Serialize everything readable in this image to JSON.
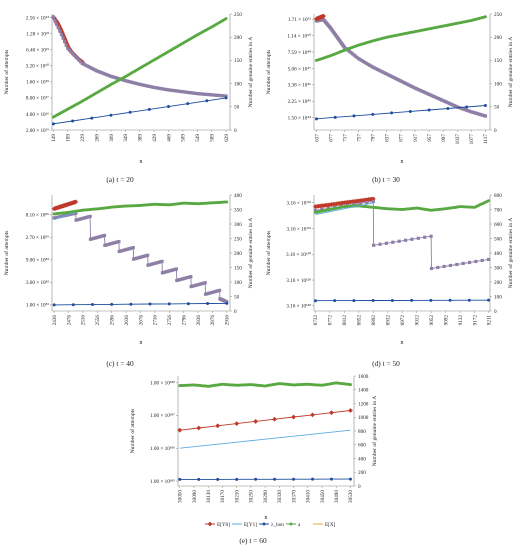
{
  "figure": {
    "legend": [
      {
        "label": "E[Y0]",
        "color": "#c0392b",
        "marker": "diamond"
      },
      {
        "label": "E[Y1]",
        "color": "#5dade2",
        "marker": "none"
      },
      {
        "label": "λ_hon",
        "color": "#1f4e9e",
        "marker": "circle"
      },
      {
        "label": "a",
        "color": "#58a942",
        "marker": "circle"
      },
      {
        "label": "E[X]",
        "color": "#e8a33d",
        "marker": "none"
      }
    ]
  },
  "chart_data": [
    {
      "id": "a",
      "type": "line",
      "caption": "(a)  t = 20",
      "xlabel": "n",
      "ylabel": "Number of attempts",
      "y2label": "Number of  genuine entries in A",
      "x_ticks": [
        "149",
        "189",
        "229",
        "269",
        "309",
        "349",
        "389",
        "429",
        "469",
        "509",
        "549",
        "589",
        "629"
      ],
      "y_left_ticks": [
        "2.56 × 10²⁴",
        "1.28 × 10²³",
        "6.40 × 10²¹",
        "3.20 × 10²⁰",
        "1.60 × 10¹⁹",
        "8.00 × 10¹⁷",
        "4.00 × 10¹⁶",
        "2.00 × 10¹⁵"
      ],
      "y_left_log10": [
        24.41,
        23.11,
        21.81,
        20.51,
        19.2,
        17.9,
        16.6,
        15.3
      ],
      "y_right_ticks": [
        0,
        50,
        100,
        150,
        200,
        250
      ],
      "xlim": [
        145,
        640
      ],
      "ylim_log10": [
        15.3,
        24.7
      ],
      "y2lim": [
        0,
        250
      ],
      "series": [
        {
          "legend": "E[Y0]",
          "axis": "left",
          "marker": "diamond",
          "color": "#c0392b",
          "x": [
            149,
            160,
            170,
            180,
            190,
            200,
            210,
            220,
            230
          ],
          "y_log10": [
            24.45,
            24.0,
            23.4,
            22.7,
            22.0,
            21.6,
            21.3,
            21.0,
            20.8
          ]
        },
        {
          "legend": "E[Y1]",
          "axis": "left",
          "marker": "none",
          "color": "#e07ad6",
          "x": [
            149,
            160,
            170,
            180,
            190,
            200,
            210,
            220,
            230
          ],
          "y_log10": [
            24.1,
            23.6,
            23.0,
            22.4,
            21.9,
            21.5,
            21.2,
            20.9,
            20.7
          ]
        },
        {
          "legend": "E[X]",
          "axis": "left",
          "marker": "square",
          "color": "#8e7fa6",
          "x": [
            149,
            189,
            229,
            269,
            309,
            349,
            389,
            429,
            469,
            509,
            549,
            589,
            629
          ],
          "y_log10": [
            24.45,
            21.9,
            20.7,
            20.1,
            19.65,
            19.3,
            19.0,
            18.75,
            18.55,
            18.4,
            18.25,
            18.15,
            18.05
          ]
        },
        {
          "legend": "λ_hon",
          "axis": "left",
          "marker": "circle",
          "color": "#1f4e9e",
          "x": [
            149,
            629
          ],
          "y_log10": [
            15.8,
            17.9
          ]
        },
        {
          "legend": "a",
          "axis": "right",
          "marker": "circle",
          "color": "#58a942",
          "x": [
            149,
            189,
            229,
            269,
            309,
            349,
            389,
            429,
            469,
            509,
            549,
            589,
            629
          ],
          "y": [
            28,
            45,
            62,
            80,
            98,
            115,
            133,
            151,
            169,
            187,
            205,
            222,
            240
          ]
        }
      ]
    },
    {
      "id": "b",
      "type": "line",
      "caption": "(b)  t = 30",
      "xlabel": "n",
      "ylabel": "Number of attempts",
      "y2label": "Number of  genuine entries in A",
      "x_ticks": [
        "637",
        "677",
        "717",
        "757",
        "797",
        "837",
        "877",
        "917",
        "957",
        "997",
        "1037",
        "1077",
        "1117"
      ],
      "y_left_ticks": [
        "1.71 × 10⁵¹",
        "1.14 × 10⁵⁰",
        "7.59 × 10⁴⁸",
        "5.06 × 10⁴⁷",
        "3.38 × 10⁴⁶",
        "2.25 × 10⁴⁵",
        "1.50 × 10⁴⁴"
      ],
      "y_left_log10": [
        51.23,
        50.06,
        48.88,
        47.7,
        46.53,
        45.35,
        44.18
      ],
      "y_right_ticks": [
        0,
        50,
        100,
        150,
        200,
        250
      ],
      "xlim": [
        630,
        1130
      ],
      "ylim_log10": [
        43.3,
        51.6
      ],
      "y2lim": [
        0,
        250
      ],
      "series": [
        {
          "legend": "E[X]",
          "axis": "left",
          "marker": "square",
          "color": "#8e7fa6",
          "x": [
            637,
            657,
            677,
            697,
            717,
            757,
            797,
            837,
            877,
            917,
            957,
            997,
            1037,
            1077,
            1117
          ],
          "y_log10": [
            51.1,
            51.2,
            50.6,
            49.9,
            49.2,
            48.4,
            47.8,
            47.3,
            46.8,
            46.3,
            45.85,
            45.4,
            44.95,
            44.6,
            44.3
          ]
        },
        {
          "legend": "E[Y0]",
          "axis": "left",
          "marker": "diamond",
          "color": "#c0392b",
          "x": [
            637,
            647,
            657
          ],
          "y_log10": [
            51.25,
            51.35,
            51.45
          ]
        },
        {
          "legend": "λ_hon",
          "axis": "left",
          "marker": "circle",
          "color": "#1f4e9e",
          "x": [
            637,
            1117
          ],
          "y_log10": [
            44.1,
            45.05
          ]
        },
        {
          "legend": "a",
          "axis": "right",
          "marker": "circle",
          "color": "#58a942",
          "x": [
            637,
            677,
            717,
            757,
            797,
            837,
            877,
            917,
            957,
            997,
            1037,
            1077,
            1117
          ],
          "y": [
            150,
            160,
            172,
            183,
            192,
            200,
            206,
            212,
            218,
            224,
            230,
            236,
            244
          ]
        }
      ]
    },
    {
      "id": "c",
      "type": "line",
      "caption": "(c)  t = 40",
      "xlabel": "n",
      "ylabel": "Number of attempts",
      "y2label": "Number of  genuine entries in A",
      "x_ticks": [
        "2436",
        "2476",
        "2516",
        "2556",
        "2596",
        "2636",
        "2676",
        "2716",
        "2756",
        "2796",
        "2836",
        "2876",
        "2916"
      ],
      "y_left_ticks": [
        "8.10 × 10⁸⁶",
        "2.70 × 10⁸⁵",
        "9.00 × 10⁸³",
        "3.00 × 10⁸²",
        "1.00 × 10⁸¹"
      ],
      "y_left_log10": [
        86.91,
        85.43,
        83.95,
        82.48,
        81.0
      ],
      "y_right_ticks": [
        0,
        50,
        100,
        150,
        200,
        250,
        300,
        350,
        400
      ],
      "xlim": [
        2430,
        2925
      ],
      "ylim_log10": [
        80.6,
        88.2
      ],
      "y2lim": [
        0,
        400
      ],
      "series": [
        {
          "legend": "E[Y0]",
          "axis": "left",
          "marker": "diamond",
          "color": "#c0392b",
          "x": [
            2436,
            2456,
            2476,
            2496
          ],
          "y_log10": [
            87.3,
            87.45,
            87.6,
            87.75
          ]
        },
        {
          "legend": "E[X]",
          "axis": "left",
          "marker": "square",
          "color": "#8e7fa6",
          "x": [
            2436,
            2496,
            2497,
            2536,
            2537,
            2576,
            2577,
            2616,
            2617,
            2656,
            2657,
            2696,
            2697,
            2736,
            2737,
            2776,
            2777,
            2816,
            2817,
            2856,
            2857,
            2896,
            2897,
            2916
          ],
          "y_log10": [
            86.7,
            87.0,
            86.55,
            86.8,
            85.3,
            85.55,
            84.9,
            85.15,
            84.5,
            84.75,
            84.0,
            84.25,
            83.6,
            83.85,
            83.1,
            83.35,
            82.6,
            82.85,
            82.2,
            82.45,
            81.7,
            81.95,
            81.4,
            81.2
          ]
        },
        {
          "legend": "λ_hon",
          "axis": "left",
          "marker": "circle",
          "color": "#1f4e9e",
          "x": [
            2436,
            2916
          ],
          "y_log10": [
            81.0,
            81.1
          ]
        },
        {
          "legend": "a",
          "axis": "right",
          "marker": "circle",
          "color": "#58a942",
          "x": [
            2436,
            2476,
            2516,
            2556,
            2596,
            2636,
            2676,
            2716,
            2756,
            2796,
            2836,
            2876,
            2916
          ],
          "y": [
            335,
            340,
            348,
            352,
            358,
            362,
            364,
            368,
            366,
            372,
            370,
            373,
            376
          ]
        },
        {
          "legend": "E[Y1]",
          "axis": "right",
          "marker": "none",
          "color": "#5dade2",
          "x": [
            2436,
            2496
          ],
          "y": [
            315,
            340
          ]
        }
      ]
    },
    {
      "id": "d",
      "type": "line",
      "caption": "(d)  t = 50",
      "xlabel": "n",
      "ylabel": "Number of attempts",
      "y2label": "Number of  genuine entries in A",
      "x_ticks": [
        "8732",
        "8772",
        "8812",
        "8852",
        "8892",
        "8932",
        "8972",
        "9012",
        "9052",
        "9092",
        "9132",
        "9172",
        "9211"
      ],
      "y_left_ticks": [
        "3.16 × 10¹³²",
        "3.16 × 10¹³¹",
        "3.16 × 10¹³⁰",
        "3.16 × 10¹²⁹",
        "3.16 × 10¹²⁸"
      ],
      "y_left_log10": [
        132.5,
        131.5,
        130.5,
        129.5,
        128.5
      ],
      "y_right_ticks": [
        0,
        100,
        200,
        300,
        400,
        500,
        600,
        700,
        800
      ],
      "xlim": [
        8728,
        9215
      ],
      "ylim_log10": [
        128.3,
        132.8
      ],
      "y2lim": [
        0,
        800
      ],
      "series": [
        {
          "legend": "E[Y0]",
          "axis": "left",
          "marker": "diamond",
          "color": "#c0392b",
          "x": [
            8732,
            8772,
            8812,
            8852,
            8892
          ],
          "y_log10": [
            132.35,
            132.42,
            132.5,
            132.57,
            132.65
          ]
        },
        {
          "legend": "E[X]",
          "axis": "left",
          "marker": "square",
          "color": "#8e7fa6",
          "x": [
            8732,
            8892,
            8893,
            9052,
            9053,
            9211
          ],
          "y_log10": [
            132.2,
            132.55,
            130.85,
            131.2,
            129.95,
            130.3
          ]
        },
        {
          "legend": "λ_hon",
          "axis": "left",
          "marker": "circle",
          "color": "#1f4e9e",
          "x": [
            8732,
            9211
          ],
          "y_log10": [
            128.7,
            128.72
          ]
        },
        {
          "legend": "a",
          "axis": "right",
          "marker": "circle",
          "color": "#58a942",
          "x": [
            8732,
            8772,
            8812,
            8852,
            8892,
            8932,
            8972,
            9012,
            9052,
            9092,
            9132,
            9172,
            9211
          ],
          "y": [
            680,
            700,
            720,
            725,
            715,
            705,
            700,
            710,
            695,
            705,
            720,
            715,
            760
          ]
        },
        {
          "legend": "E[Y1]",
          "axis": "right",
          "marker": "none",
          "color": "#5dade2",
          "x": [
            8732,
            8892
          ],
          "y": [
            665,
            745
          ]
        }
      ]
    },
    {
      "id": "e",
      "type": "line",
      "caption": "(e)  t = 60",
      "xlabel": "n",
      "ylabel": "Number of attempts",
      "y2label": "Number of  genuine entries in A",
      "x_ticks": [
        "30050",
        "30090",
        "30130",
        "30170",
        "30210",
        "30250",
        "30290",
        "30330",
        "30370",
        "30410",
        "30450",
        "30490",
        "30530"
      ],
      "y_left_ticks": [
        "1.00 × 10¹⁸⁸",
        "1.00 × 10¹⁸⁷",
        "1.00 × 10¹⁸⁶",
        "1.00 × 10¹⁸⁵"
      ],
      "y_left_log10": [
        188,
        187,
        186,
        185
      ],
      "y_right_ticks": [
        0,
        200,
        400,
        600,
        800,
        1000,
        1200,
        1400,
        1600
      ],
      "xlim": [
        30045,
        30540
      ],
      "ylim_log10": [
        184.85,
        188.2
      ],
      "y2lim": [
        0,
        1600
      ],
      "series": [
        {
          "legend": "E[Y0]",
          "axis": "left",
          "marker": "diamond",
          "color": "#c0392b",
          "x": [
            30050,
            30530
          ],
          "y_log10": [
            186.55,
            187.15
          ]
        },
        {
          "legend": "E[Y1]",
          "axis": "left",
          "marker": "none",
          "color": "#5dade2",
          "x": [
            30050,
            30530
          ],
          "y_log10": [
            186.0,
            186.55
          ]
        },
        {
          "legend": "λ_hon",
          "axis": "left",
          "marker": "circle",
          "color": "#1f4e9e",
          "x": [
            30050,
            30530
          ],
          "y_log10": [
            185.05,
            185.06
          ]
        },
        {
          "legend": "a",
          "axis": "right",
          "marker": "circle",
          "color": "#58a942",
          "x": [
            30050,
            30090,
            30130,
            30170,
            30210,
            30250,
            30290,
            30330,
            30370,
            30410,
            30450,
            30490,
            30530
          ],
          "y": [
            1460,
            1470,
            1450,
            1480,
            1465,
            1475,
            1455,
            1490,
            1470,
            1480,
            1465,
            1500,
            1475
          ]
        }
      ]
    }
  ]
}
